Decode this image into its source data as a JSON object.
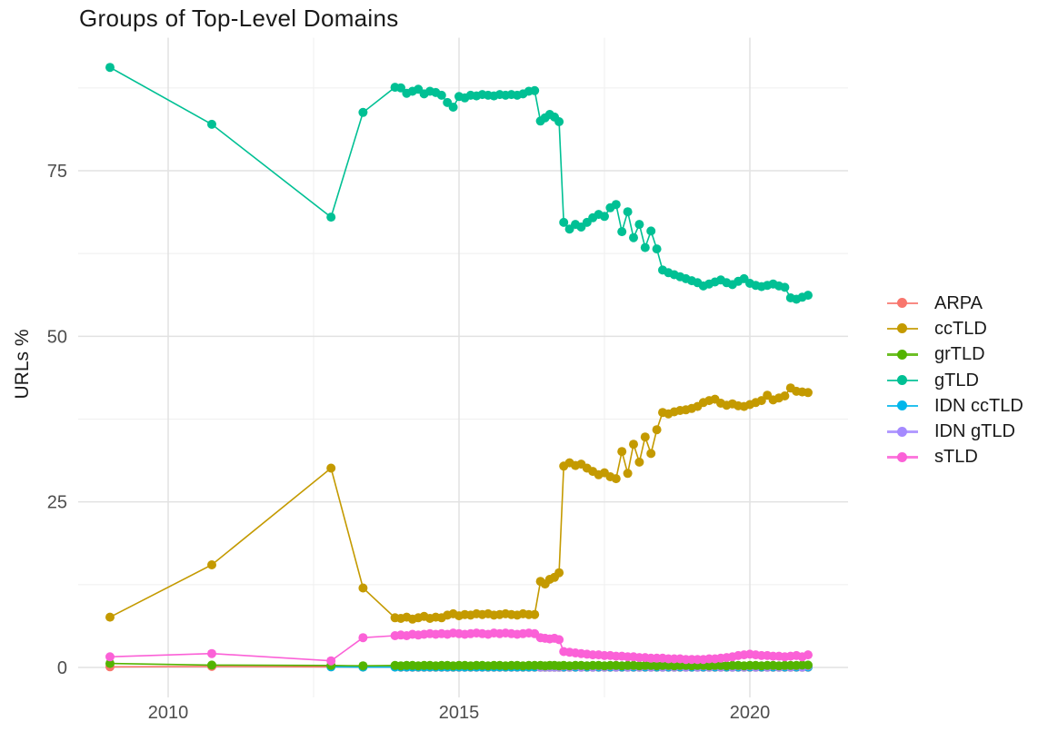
{
  "chart_data": {
    "type": "line",
    "title": "Groups of Top-Level Domains",
    "xlabel": "",
    "ylabel": "URLs %",
    "legend_position": "right",
    "grid": true,
    "background": "#ffffff",
    "grid_color_major": "#e2e2e2",
    "grid_color_minor": "#efefef",
    "tick_label_color": "#4d4d4d",
    "xlim": [
      2008.4,
      2021.7
    ],
    "ylim": [
      -4.5,
      95.2
    ],
    "x_ticks": [
      2010,
      2015,
      2020
    ],
    "x_tick_labels": [
      "2010",
      "2015",
      "2020"
    ],
    "x_minor_ticks": [
      2012.5,
      2017.5
    ],
    "y_ticks": [
      0,
      25,
      50,
      75
    ],
    "y_tick_labels": [
      "0",
      "25",
      "50",
      "75"
    ],
    "y_minor_ticks": [
      12.5,
      37.5,
      62.5,
      87.5
    ],
    "x": [
      2009.0,
      2010.75,
      2012.8,
      2013.35,
      2013.9,
      2014.0,
      2014.1,
      2014.2,
      2014.3,
      2014.4,
      2014.5,
      2014.6,
      2014.7,
      2014.8,
      2014.9,
      2015.0,
      2015.1,
      2015.2,
      2015.3,
      2015.4,
      2015.5,
      2015.6,
      2015.7,
      2015.8,
      2015.9,
      2016.0,
      2016.1,
      2016.2,
      2016.3,
      2016.4,
      2016.48,
      2016.56,
      2016.64,
      2016.72,
      2016.8,
      2016.9,
      2017.0,
      2017.1,
      2017.2,
      2017.3,
      2017.4,
      2017.5,
      2017.6,
      2017.7,
      2017.8,
      2017.9,
      2018.0,
      2018.1,
      2018.2,
      2018.3,
      2018.4,
      2018.5,
      2018.6,
      2018.7,
      2018.8,
      2018.9,
      2019.0,
      2019.1,
      2019.2,
      2019.3,
      2019.4,
      2019.5,
      2019.6,
      2019.7,
      2019.8,
      2019.9,
      2020.0,
      2020.1,
      2020.2,
      2020.3,
      2020.4,
      2020.5,
      2020.6,
      2020.7,
      2020.8,
      2020.9,
      2021.0
    ],
    "draw_order": [
      0,
      4,
      5,
      2,
      1,
      3,
      6
    ],
    "series": [
      {
        "name": "ARPA",
        "color": "#F8766D",
        "values": [
          0.1,
          0.15,
          0.1,
          0.05,
          0.05,
          0.04,
          0.04,
          0.03,
          0.03,
          0.03,
          0.03,
          0.03,
          0.03,
          0.03,
          0.03,
          0.03,
          0.03,
          0.03,
          0.03,
          0.03,
          0.03,
          0.03,
          0.03,
          0.03,
          0.03,
          0.03,
          0.03,
          0.03,
          0.03,
          0.03,
          0.03,
          0.03,
          0.03,
          0.03,
          0.03,
          0.03,
          0.03,
          0.03,
          0.03,
          0.03,
          0.03,
          0.03,
          0.03,
          0.03,
          0.03,
          0.03,
          0.03,
          0.03,
          0.03,
          0.03,
          0.03,
          0.03,
          0.03,
          0.03,
          0.03,
          0.03,
          0.03,
          0.03,
          0.03,
          0.03,
          0.03,
          0.03,
          0.03,
          0.03,
          0.03,
          0.03,
          0.03,
          0.03,
          0.03,
          0.03,
          0.03,
          0.03,
          0.03,
          0.03,
          0.03,
          0.03,
          0.03
        ]
      },
      {
        "name": "ccTLD",
        "color": "#C49A00",
        "values": [
          7.6,
          15.5,
          30.1,
          12.0,
          7.5,
          7.4,
          7.6,
          7.3,
          7.5,
          7.7,
          7.4,
          7.6,
          7.5,
          7.9,
          8.1,
          7.8,
          8.0,
          7.9,
          8.1,
          8.0,
          8.1,
          7.9,
          8.0,
          8.1,
          8.0,
          7.9,
          8.1,
          8.0,
          8.0,
          13.0,
          12.6,
          13.3,
          13.6,
          14.3,
          30.4,
          30.9,
          30.5,
          30.7,
          30.1,
          29.6,
          29.1,
          29.4,
          28.8,
          28.5,
          32.6,
          29.3,
          33.7,
          31.0,
          34.8,
          32.3,
          35.9,
          38.5,
          38.3,
          38.6,
          38.8,
          38.9,
          39.1,
          39.4,
          40.0,
          40.3,
          40.5,
          39.9,
          39.6,
          39.8,
          39.5,
          39.4,
          39.7,
          40.0,
          40.3,
          41.1,
          40.4,
          40.7,
          41.0,
          42.2,
          41.7,
          41.6,
          41.5
        ]
      },
      {
        "name": "grTLD",
        "color": "#53B400",
        "values": [
          0.6,
          0.35,
          0.3,
          0.25,
          0.3,
          0.25,
          0.3,
          0.3,
          0.25,
          0.3,
          0.3,
          0.25,
          0.3,
          0.3,
          0.25,
          0.3,
          0.3,
          0.25,
          0.3,
          0.3,
          0.25,
          0.3,
          0.3,
          0.25,
          0.3,
          0.3,
          0.25,
          0.3,
          0.3,
          0.3,
          0.25,
          0.3,
          0.3,
          0.25,
          0.3,
          0.25,
          0.3,
          0.3,
          0.25,
          0.3,
          0.3,
          0.25,
          0.3,
          0.3,
          0.25,
          0.3,
          0.3,
          0.25,
          0.3,
          0.3,
          0.25,
          0.3,
          0.3,
          0.25,
          0.3,
          0.3,
          0.25,
          0.3,
          0.3,
          0.25,
          0.3,
          0.3,
          0.25,
          0.3,
          0.3,
          0.25,
          0.3,
          0.3,
          0.25,
          0.3,
          0.3,
          0.25,
          0.3,
          0.3,
          0.3,
          0.35,
          0.35
        ]
      },
      {
        "name": "gTLD",
        "color": "#00C094",
        "values": [
          90.6,
          82.0,
          68.0,
          83.8,
          87.6,
          87.5,
          86.7,
          87.0,
          87.3,
          86.6,
          87.0,
          86.8,
          86.4,
          85.3,
          84.6,
          86.2,
          86.0,
          86.4,
          86.3,
          86.5,
          86.4,
          86.3,
          86.5,
          86.4,
          86.5,
          86.4,
          86.6,
          87.0,
          87.1,
          82.5,
          83.0,
          83.5,
          83.1,
          82.4,
          67.2,
          66.2,
          66.9,
          66.5,
          67.2,
          67.9,
          68.4,
          68.1,
          69.4,
          69.9,
          65.8,
          68.8,
          64.9,
          66.9,
          63.4,
          65.9,
          63.2,
          60.0,
          59.6,
          59.3,
          59.0,
          58.7,
          58.4,
          58.1,
          57.6,
          57.9,
          58.2,
          58.5,
          58.1,
          57.8,
          58.3,
          58.7,
          58.0,
          57.7,
          57.5,
          57.7,
          57.9,
          57.6,
          57.4,
          55.8,
          55.6,
          55.9,
          56.2
        ]
      },
      {
        "name": "IDN ccTLD",
        "color": "#00B6EB",
        "values": [
          null,
          null,
          0.1,
          0.06,
          0.05,
          0.05,
          0.05,
          0.05,
          0.05,
          0.05,
          0.05,
          0.05,
          0.05,
          0.05,
          0.05,
          0.05,
          0.05,
          0.05,
          0.05,
          0.05,
          0.05,
          0.05,
          0.05,
          0.05,
          0.05,
          0.05,
          0.05,
          0.05,
          0.05,
          0.05,
          0.05,
          0.05,
          0.05,
          0.05,
          0.05,
          0.05,
          0.05,
          0.05,
          0.05,
          0.05,
          0.05,
          0.05,
          0.05,
          0.05,
          0.05,
          0.05,
          0.05,
          0.05,
          0.05,
          0.05,
          0.05,
          0.05,
          0.05,
          0.05,
          0.05,
          0.05,
          0.05,
          0.05,
          0.05,
          0.05,
          0.05,
          0.05,
          0.05,
          0.05,
          0.05,
          0.05,
          0.05,
          0.05,
          0.05,
          0.05,
          0.05,
          0.05,
          0.05,
          0.05,
          0.05,
          0.05,
          0.05
        ]
      },
      {
        "name": "IDN gTLD",
        "color": "#A58AFF",
        "values": [
          null,
          null,
          null,
          null,
          null,
          null,
          null,
          null,
          null,
          null,
          null,
          null,
          null,
          null,
          null,
          null,
          null,
          null,
          null,
          null,
          null,
          null,
          null,
          null,
          null,
          null,
          null,
          null,
          null,
          0.06,
          0.05,
          0.06,
          0.05,
          0.06,
          0.25,
          0.05,
          0.25,
          0.05,
          0.25,
          0.05,
          0.25,
          0.05,
          0.25,
          0.05,
          0.25,
          0.05,
          0.25,
          0.05,
          0.25,
          0.05,
          0.25,
          0.05,
          0.25,
          0.05,
          0.25,
          0.05,
          0.25,
          0.05,
          0.25,
          0.05,
          0.25,
          0.05,
          0.25,
          0.05,
          0.25,
          0.05,
          0.25,
          0.05,
          0.25,
          0.05,
          0.25,
          0.05,
          0.25,
          0.05,
          0.25,
          0.05,
          0.25
        ]
      },
      {
        "name": "sTLD",
        "color": "#FB61D7",
        "values": [
          1.6,
          2.1,
          1.0,
          4.5,
          4.8,
          4.9,
          4.8,
          5.0,
          4.9,
          5.0,
          5.1,
          5.0,
          5.1,
          5.0,
          5.2,
          5.1,
          5.0,
          5.1,
          5.2,
          5.1,
          5.0,
          5.2,
          5.1,
          5.2,
          5.1,
          5.0,
          5.1,
          5.2,
          5.1,
          4.5,
          4.4,
          4.3,
          4.4,
          4.2,
          2.4,
          2.3,
          2.2,
          2.1,
          2.0,
          1.9,
          1.9,
          1.8,
          1.8,
          1.7,
          1.7,
          1.6,
          1.6,
          1.5,
          1.5,
          1.4,
          1.4,
          1.4,
          1.3,
          1.3,
          1.3,
          1.2,
          1.2,
          1.2,
          1.2,
          1.3,
          1.3,
          1.4,
          1.5,
          1.6,
          1.8,
          1.9,
          2.0,
          1.9,
          1.8,
          1.8,
          1.7,
          1.7,
          1.6,
          1.7,
          1.8,
          1.6,
          1.9
        ]
      }
    ]
  }
}
